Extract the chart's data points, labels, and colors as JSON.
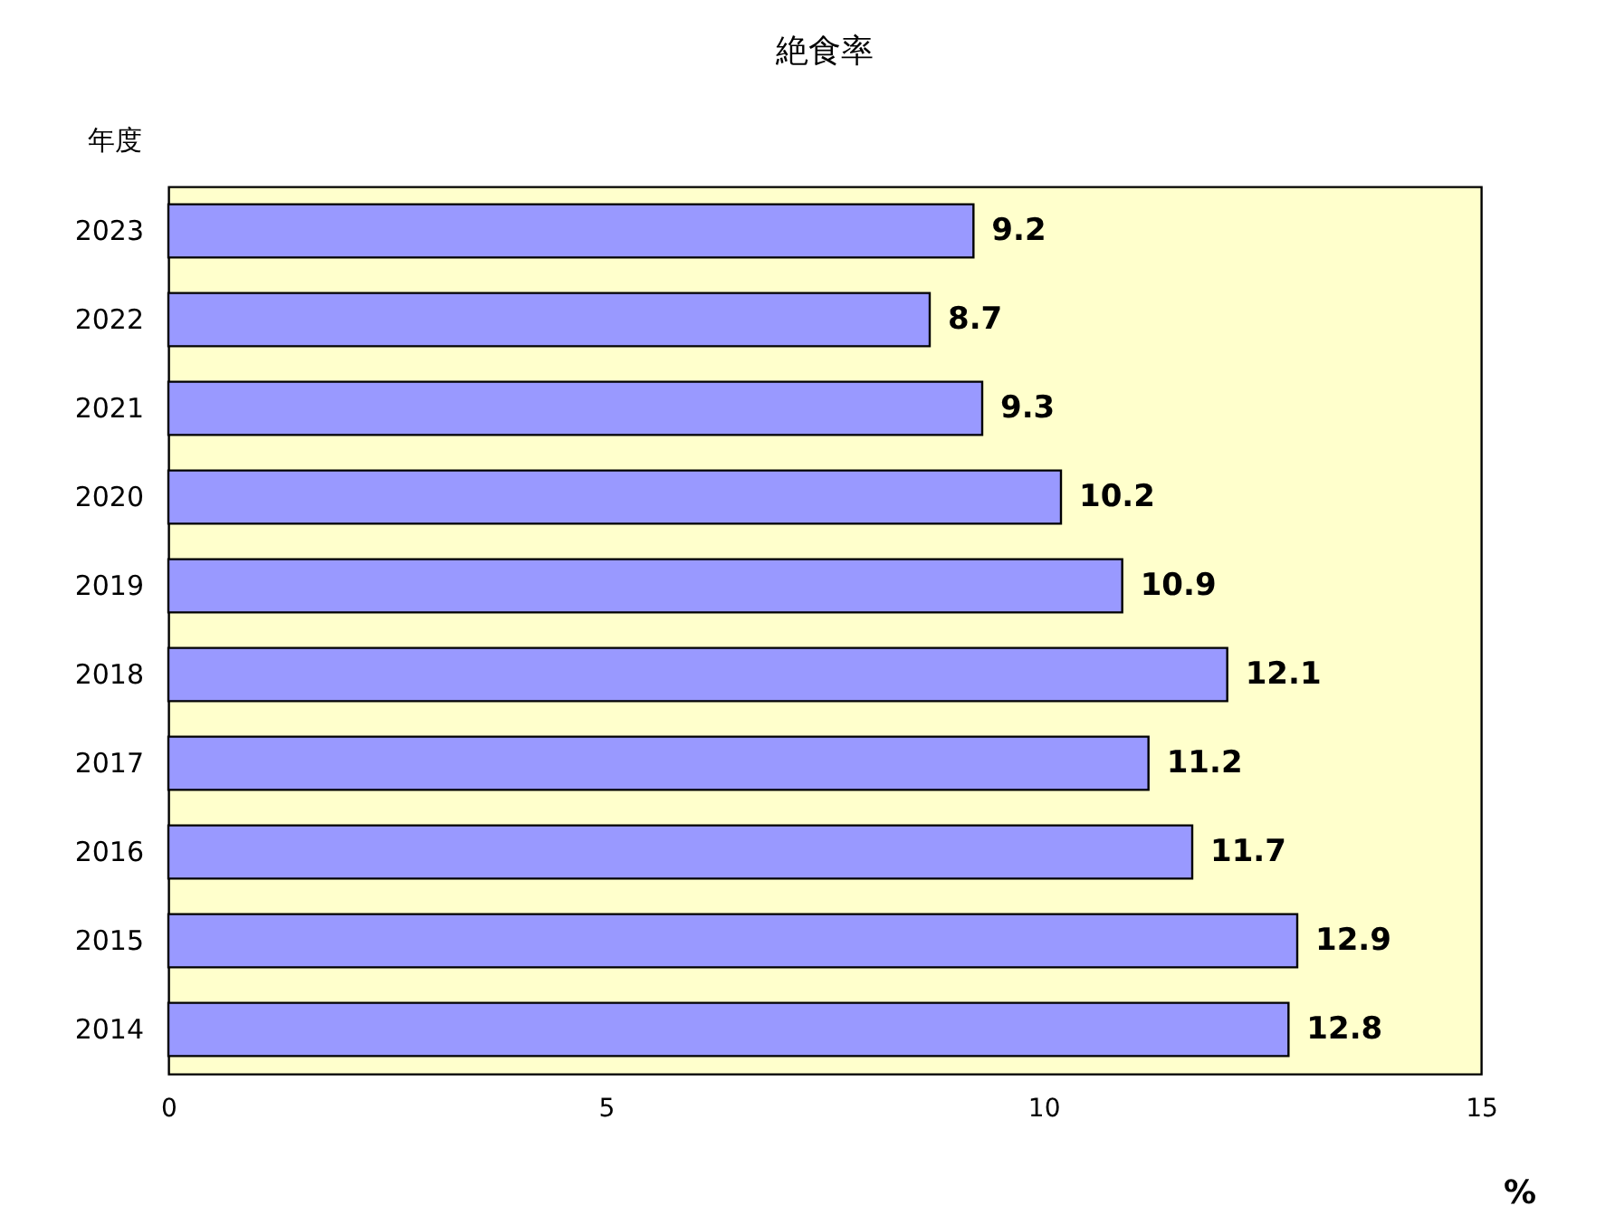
{
  "chart_data": {
    "type": "bar",
    "orientation": "horizontal",
    "title": "絶食率",
    "xlabel": "%",
    "ylabel": "年度",
    "categories": [
      "2023",
      "2022",
      "2021",
      "2020",
      "2019",
      "2018",
      "2017",
      "2016",
      "2015",
      "2014"
    ],
    "values": [
      9.2,
      8.7,
      9.3,
      10.2,
      10.9,
      12.1,
      11.2,
      11.7,
      12.9,
      12.8
    ],
    "color": "#9999ff",
    "xlim": [
      0,
      15
    ],
    "xticks": [
      0,
      5,
      10,
      15
    ],
    "grid": false,
    "data_labels": true
  }
}
